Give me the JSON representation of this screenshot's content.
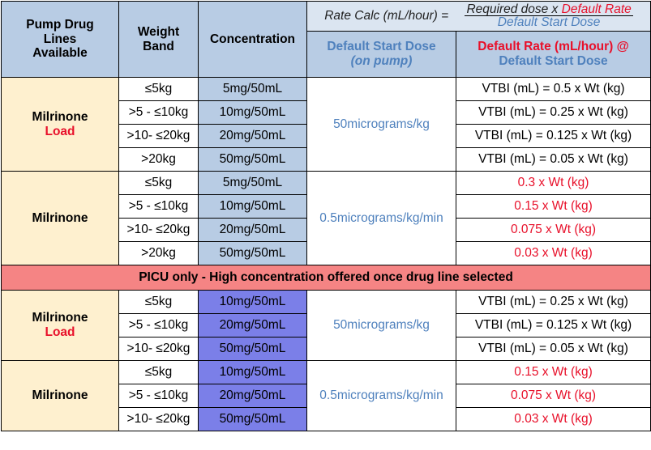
{
  "header": {
    "col1": [
      "Pump Drug",
      "Lines",
      "Available"
    ],
    "col2": [
      "Weight",
      "Band"
    ],
    "col3": "Concentration",
    "rate_calc_label": "Rate Calc (mL/hour) =",
    "rate_calc_numerator_prefix": "Required dose x",
    "rate_calc_numerator_red": "Default Rate",
    "rate_calc_denominator": "Default Start Dose",
    "start_dose_title": "Default Start Dose",
    "start_dose_sub": "(on pump)",
    "default_rate_title": "Default Rate (mL/hour) @",
    "default_rate_sub": "Default Start Dose"
  },
  "sections": [
    {
      "drug": "Milrinone",
      "drug_sub": "Load",
      "dose": "50micrograms/kg",
      "rows": [
        {
          "weight": "≤5kg",
          "conc": "5mg/50mL",
          "rate": "VTBI (mL) = 0.5 x Wt (kg)"
        },
        {
          "weight": ">5 - ≤10kg",
          "conc": "10mg/50mL",
          "rate": "VTBI (mL) = 0.25 x Wt (kg)"
        },
        {
          "weight": ">10- ≤20kg",
          "conc": "20mg/50mL",
          "rate": "VTBI (mL) = 0.125 x Wt (kg)"
        },
        {
          "weight": ">20kg",
          "conc": "50mg/50mL",
          "rate": "VTBI (mL) = 0.05 x Wt (kg)"
        }
      ]
    },
    {
      "drug": "Milrinone",
      "dose": "0.5micrograms/kg/min",
      "rows": [
        {
          "weight": "≤5kg",
          "conc": "5mg/50mL",
          "rate": "0.3 x Wt (kg)"
        },
        {
          "weight": ">5 - ≤10kg",
          "conc": "10mg/50mL",
          "rate": "0.15 x Wt (kg)"
        },
        {
          "weight": ">10- ≤20kg",
          "conc": "20mg/50mL",
          "rate": "0.075 x Wt (kg)"
        },
        {
          "weight": ">20kg",
          "conc": "50mg/50mL",
          "rate": "0.03 x Wt (kg)"
        }
      ]
    },
    {
      "drug": "Milrinone",
      "drug_sub": "Load",
      "dose": "50micrograms/kg",
      "rows": [
        {
          "weight": "≤5kg",
          "conc": "10mg/50mL",
          "rate": "VTBI (mL) = 0.25 x Wt (kg)"
        },
        {
          "weight": ">5 - ≤10kg",
          "conc": "20mg/50mL",
          "rate": "VTBI (mL) = 0.125 x Wt (kg)"
        },
        {
          "weight": ">10- ≤20kg",
          "conc": "50mg/50mL",
          "rate": "VTBI (mL) = 0.05 x Wt (kg)"
        }
      ]
    },
    {
      "drug": "Milrinone",
      "dose": "0.5micrograms/kg/min",
      "rows": [
        {
          "weight": "≤5kg",
          "conc": "10mg/50mL",
          "rate": "0.15 x Wt (kg)"
        },
        {
          "weight": ">5 - ≤10kg",
          "conc": "20mg/50mL",
          "rate": "0.075 x Wt (kg)"
        },
        {
          "weight": ">10- ≤20kg",
          "conc": "50mg/50mL",
          "rate": "0.03 x Wt (kg)"
        }
      ]
    }
  ],
  "banner": "PICU only - High concentration offered once drug line selected",
  "colors": {
    "header_bg": "#b8cce4",
    "drug_bg": "#fef0cf",
    "conc_standard_bg": "#b8cce4",
    "conc_high_bg": "#7b7fe8",
    "banner_bg": "#f58484",
    "dose_text": "#4f81bd",
    "red_text": "#e8102a"
  }
}
